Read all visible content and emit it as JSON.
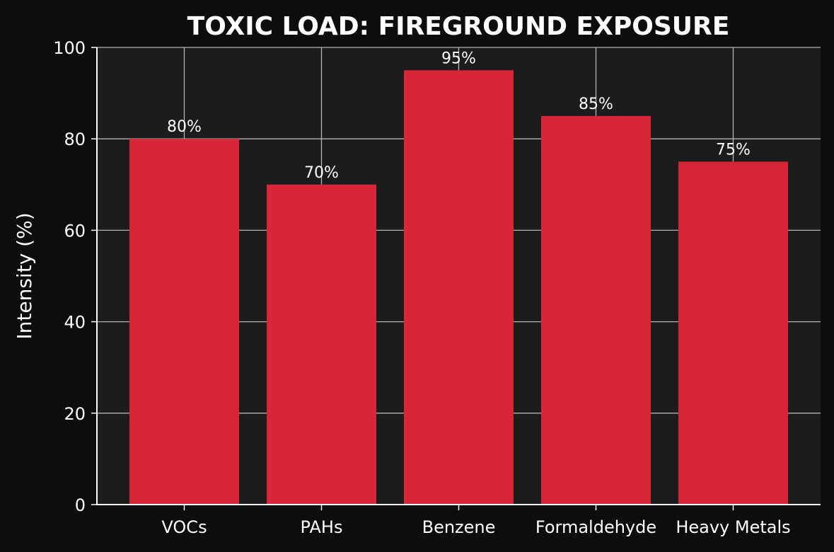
{
  "colors": {
    "page_background": "#0d0d0d",
    "plot_background": "#1c1c1d",
    "bar": "#d72638",
    "grid": "#b3b3b3",
    "text": "#ffffff",
    "axis": "#ffffff"
  },
  "chart_data": {
    "type": "bar",
    "title": "TOXIC LOAD: FIREGROUND EXPOSURE",
    "xlabel": "",
    "ylabel": "Intensity (%)",
    "categories": [
      "VOCs",
      "PAHs",
      "Benzene",
      "Formaldehyde",
      "Heavy Metals"
    ],
    "values": [
      80,
      70,
      95,
      85,
      75
    ],
    "data_labels": [
      "80%",
      "70%",
      "95%",
      "85%",
      "75%"
    ],
    "ylim": [
      0,
      100
    ],
    "yticks": [
      0,
      20,
      40,
      60,
      80,
      100
    ],
    "ytick_labels": [
      "0",
      "20",
      "40",
      "60",
      "80",
      "100"
    ],
    "grid": true,
    "legend": "none"
  }
}
